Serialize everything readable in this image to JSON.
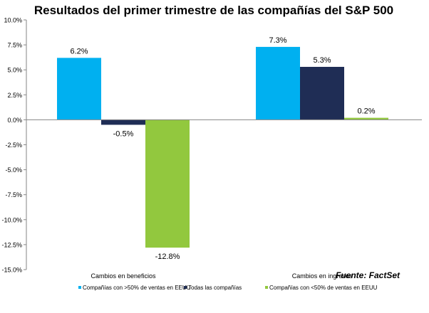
{
  "chart_data": {
    "type": "bar",
    "title": "Resultados del primer trimestre de las compañías del S&P 500",
    "categories": [
      "Cambios en beneficios",
      "Cambios en ingresos"
    ],
    "series": [
      {
        "name": "Compañías con >50% de ventas en EEUU",
        "values": [
          6.2,
          7.3
        ],
        "color": "#00b0f0"
      },
      {
        "name": "Todas las compañías",
        "values": [
          -0.5,
          5.3
        ],
        "color": "#1f2d55"
      },
      {
        "name": "Compañías con <50% de ventas en EEUU",
        "values": [
          -12.8,
          0.2
        ],
        "color": "#92c83e"
      }
    ],
    "value_labels": [
      [
        "6.2%",
        "7.3%"
      ],
      [
        "-0.5%",
        "5.3%"
      ],
      [
        "-12.8%",
        "0.2%"
      ]
    ],
    "ylim": [
      -15,
      10
    ],
    "ytick_step": 2.5,
    "ytick_labels": [
      "10.0%",
      "7.5%",
      "5.0%",
      "2.5%",
      "0.0%",
      "-2.5%",
      "-5.0%",
      "-7.5%",
      "-10.0%",
      "-12.5%",
      "-15.0%"
    ],
    "xlabel": "",
    "ylabel": "",
    "legend_position": "bottom",
    "legend_entries": [
      "Compañías con >50% de ventas en EEUU",
      "Todas las compañías",
      "Compañías con <50% de ventas en EEUU"
    ],
    "source": "Fuente: FactSet",
    "colors": {
      "axis": "#868686",
      "text": "#000000"
    }
  }
}
